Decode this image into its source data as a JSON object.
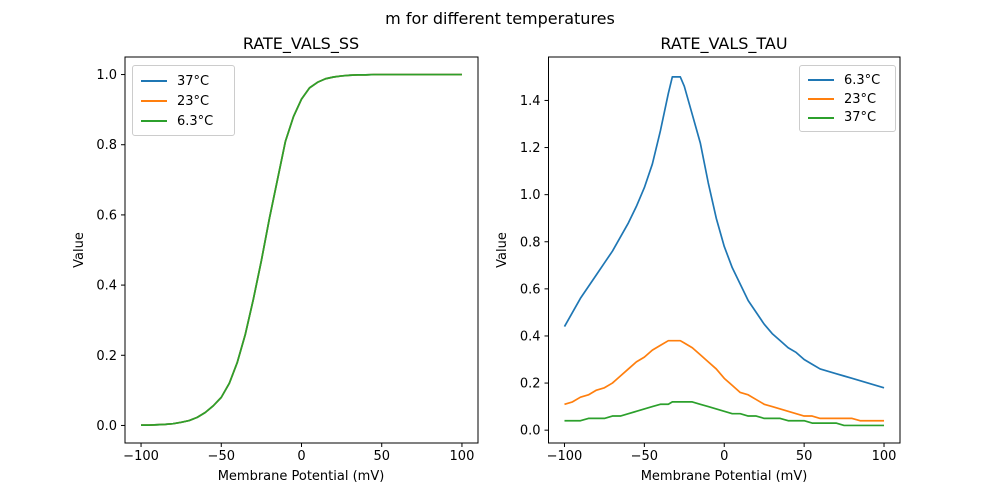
{
  "figure": {
    "suptitle": "m for different temperatures",
    "background_color": "#ffffff",
    "text_color": "#000000",
    "legend_border_color": "#cccccc"
  },
  "chart_data": [
    {
      "type": "line",
      "title": "RATE_VALS_SS",
      "xlabel": "Membrane Potential (mV)",
      "ylabel": "Value",
      "xlim": [
        -110,
        110
      ],
      "ylim": [
        -0.05,
        1.05
      ],
      "grid": false,
      "note": "All three temperature curves are identical sigmoids and overlap exactly; the green 6.3°C curve is drawn last so only green is visible.",
      "xticks": [
        {
          "v": -100,
          "label": "−100"
        },
        {
          "v": -50,
          "label": "−50"
        },
        {
          "v": 0,
          "label": "0"
        },
        {
          "v": 50,
          "label": "50"
        },
        {
          "v": 100,
          "label": "100"
        }
      ],
      "yticks": [
        {
          "v": 0.0,
          "label": "0.0"
        },
        {
          "v": 0.2,
          "label": "0.2"
        },
        {
          "v": 0.4,
          "label": "0.4"
        },
        {
          "v": 0.6,
          "label": "0.6"
        },
        {
          "v": 0.8,
          "label": "0.8"
        },
        {
          "v": 1.0,
          "label": "1.0"
        }
      ],
      "legend": {
        "position": "upper-left",
        "entries": [
          {
            "label": "37°C",
            "color": "#1f77b4"
          },
          {
            "label": "23°C",
            "color": "#ff7f0e"
          },
          {
            "label": "6.3°C",
            "color": "#2ca02c"
          }
        ]
      },
      "x": [
        -100,
        -95,
        -90,
        -85,
        -80,
        -75,
        -70,
        -65,
        -60,
        -55,
        -50,
        -45,
        -40,
        -35,
        -30,
        -25,
        -20,
        -15,
        -10,
        -5,
        0,
        5,
        10,
        15,
        20,
        25,
        30,
        35,
        40,
        45,
        50,
        55,
        60,
        65,
        70,
        75,
        80,
        85,
        90,
        95,
        100
      ],
      "series": [
        {
          "name": "37°C",
          "color": "#1f77b4",
          "values": [
            0.001,
            0.001,
            0.002,
            0.003,
            0.005,
            0.009,
            0.014,
            0.023,
            0.037,
            0.056,
            0.08,
            0.12,
            0.18,
            0.26,
            0.36,
            0.47,
            0.59,
            0.7,
            0.81,
            0.88,
            0.93,
            0.962,
            0.978,
            0.988,
            0.993,
            0.996,
            0.998,
            0.999,
            0.999,
            1.0,
            1.0,
            1.0,
            1.0,
            1.0,
            1.0,
            1.0,
            1.0,
            1.0,
            1.0,
            1.0,
            1.0
          ]
        },
        {
          "name": "23°C",
          "color": "#ff7f0e",
          "values": [
            0.001,
            0.001,
            0.002,
            0.003,
            0.005,
            0.009,
            0.014,
            0.023,
            0.037,
            0.056,
            0.08,
            0.12,
            0.18,
            0.26,
            0.36,
            0.47,
            0.59,
            0.7,
            0.81,
            0.88,
            0.93,
            0.962,
            0.978,
            0.988,
            0.993,
            0.996,
            0.998,
            0.999,
            0.999,
            1.0,
            1.0,
            1.0,
            1.0,
            1.0,
            1.0,
            1.0,
            1.0,
            1.0,
            1.0,
            1.0,
            1.0
          ]
        },
        {
          "name": "6.3°C",
          "color": "#2ca02c",
          "values": [
            0.001,
            0.001,
            0.002,
            0.003,
            0.005,
            0.009,
            0.014,
            0.023,
            0.037,
            0.056,
            0.08,
            0.12,
            0.18,
            0.26,
            0.36,
            0.47,
            0.59,
            0.7,
            0.81,
            0.88,
            0.93,
            0.962,
            0.978,
            0.988,
            0.993,
            0.996,
            0.998,
            0.999,
            0.999,
            1.0,
            1.0,
            1.0,
            1.0,
            1.0,
            1.0,
            1.0,
            1.0,
            1.0,
            1.0,
            1.0,
            1.0
          ]
        }
      ]
    },
    {
      "type": "line",
      "title": "RATE_VALS_TAU",
      "xlabel": "Membrane Potential (mV)",
      "ylabel": "Value",
      "xlim": [
        -110,
        110
      ],
      "ylim": [
        -0.0545,
        1.5845
      ],
      "grid": false,
      "note": "Time-constant curves peak near -30 mV; lower temperature gives larger tau.",
      "xticks": [
        {
          "v": -100,
          "label": "−100"
        },
        {
          "v": -50,
          "label": "−50"
        },
        {
          "v": 0,
          "label": "0"
        },
        {
          "v": 50,
          "label": "50"
        },
        {
          "v": 100,
          "label": "100"
        }
      ],
      "yticks": [
        {
          "v": 0.0,
          "label": "0.0"
        },
        {
          "v": 0.2,
          "label": "0.2"
        },
        {
          "v": 0.4,
          "label": "0.4"
        },
        {
          "v": 0.6,
          "label": "0.6"
        },
        {
          "v": 0.8,
          "label": "0.8"
        },
        {
          "v": 1.0,
          "label": "1.0"
        },
        {
          "v": 1.2,
          "label": "1.2"
        },
        {
          "v": 1.4,
          "label": "1.4"
        }
      ],
      "legend": {
        "position": "upper-right",
        "entries": [
          {
            "label": "6.3°C",
            "color": "#1f77b4"
          },
          {
            "label": "23°C",
            "color": "#ff7f0e"
          },
          {
            "label": "37°C",
            "color": "#2ca02c"
          }
        ]
      },
      "x": [
        -100,
        -95,
        -90,
        -85,
        -80,
        -75,
        -70,
        -65,
        -60,
        -55,
        -50,
        -45,
        -40,
        -35,
        -32.5,
        -30,
        -27.5,
        -25,
        -20,
        -15,
        -10,
        -5,
        0,
        5,
        10,
        15,
        20,
        25,
        30,
        35,
        40,
        45,
        50,
        55,
        60,
        65,
        70,
        75,
        80,
        85,
        90,
        95,
        100
      ],
      "series": [
        {
          "name": "6.3°C",
          "color": "#1f77b4",
          "values": [
            0.44,
            0.5,
            0.56,
            0.61,
            0.66,
            0.71,
            0.76,
            0.82,
            0.88,
            0.95,
            1.03,
            1.13,
            1.27,
            1.43,
            1.5,
            1.5,
            1.5,
            1.46,
            1.34,
            1.22,
            1.05,
            0.9,
            0.78,
            0.69,
            0.62,
            0.55,
            0.5,
            0.45,
            0.41,
            0.38,
            0.35,
            0.33,
            0.3,
            0.28,
            0.26,
            0.25,
            0.24,
            0.23,
            0.22,
            0.21,
            0.2,
            0.19,
            0.18
          ]
        },
        {
          "name": "23°C",
          "color": "#ff7f0e",
          "values": [
            0.11,
            0.12,
            0.14,
            0.15,
            0.17,
            0.18,
            0.2,
            0.23,
            0.26,
            0.29,
            0.31,
            0.34,
            0.36,
            0.38,
            0.38,
            0.38,
            0.38,
            0.37,
            0.35,
            0.32,
            0.29,
            0.26,
            0.22,
            0.19,
            0.16,
            0.15,
            0.13,
            0.11,
            0.1,
            0.09,
            0.08,
            0.07,
            0.06,
            0.06,
            0.05,
            0.05,
            0.05,
            0.05,
            0.05,
            0.04,
            0.04,
            0.04,
            0.04
          ]
        },
        {
          "name": "37°C",
          "color": "#2ca02c",
          "values": [
            0.04,
            0.04,
            0.04,
            0.05,
            0.05,
            0.05,
            0.06,
            0.06,
            0.07,
            0.08,
            0.09,
            0.1,
            0.11,
            0.11,
            0.12,
            0.12,
            0.12,
            0.12,
            0.12,
            0.11,
            0.1,
            0.09,
            0.08,
            0.07,
            0.07,
            0.06,
            0.06,
            0.05,
            0.05,
            0.05,
            0.04,
            0.04,
            0.04,
            0.03,
            0.03,
            0.03,
            0.03,
            0.02,
            0.02,
            0.02,
            0.02,
            0.02,
            0.02
          ]
        }
      ]
    }
  ]
}
